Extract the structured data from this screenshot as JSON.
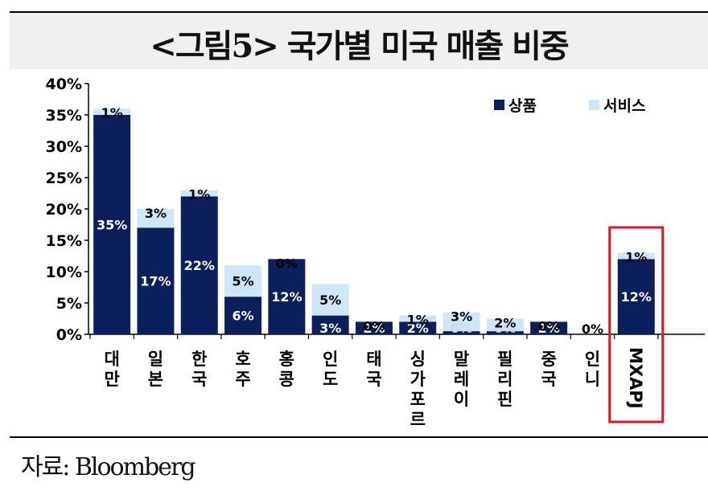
{
  "header": {
    "title": "<그림5> 국가별 미국 매출 비중"
  },
  "footer": {
    "source": "자료: Bloomberg"
  },
  "colors": {
    "goods": "#0b1f5c",
    "services": "#cfe6f7",
    "highlight": "#e3131b"
  },
  "chart_data": {
    "type": "bar",
    "stacked": true,
    "categories": [
      "대만",
      "일본",
      "한국",
      "호주",
      "홍콩",
      "인도",
      "태국",
      "싱가포르",
      "말레이",
      "필리핀",
      "중국",
      "인니",
      "MXAPJ"
    ],
    "series": [
      {
        "name": "상품",
        "values": [
          35,
          17,
          22,
          6,
          12,
          3,
          2,
          2,
          0.5,
          0.5,
          2,
          0,
          12
        ],
        "labels": [
          "35%",
          "17%",
          "22%",
          "6%",
          "12%",
          "3%",
          "2%",
          "2%",
          "0%",
          "0%",
          "2%",
          "0%",
          "12%"
        ]
      },
      {
        "name": "서비스",
        "values": [
          1,
          3,
          1,
          5,
          0,
          5,
          0,
          1,
          3,
          2,
          0,
          0,
          1
        ],
        "labels": [
          "1%",
          "3%",
          "1%",
          "5%",
          "0%",
          "5%",
          "0%",
          "1%",
          "3%",
          "2%",
          "0%",
          "",
          "1%"
        ]
      }
    ],
    "yticks": [
      "0%",
      "5%",
      "10%",
      "15%",
      "20%",
      "25%",
      "30%",
      "35%",
      "40%"
    ],
    "ylim": [
      0,
      40
    ],
    "legend": "top-right",
    "highlight_category": "MXAPJ"
  }
}
